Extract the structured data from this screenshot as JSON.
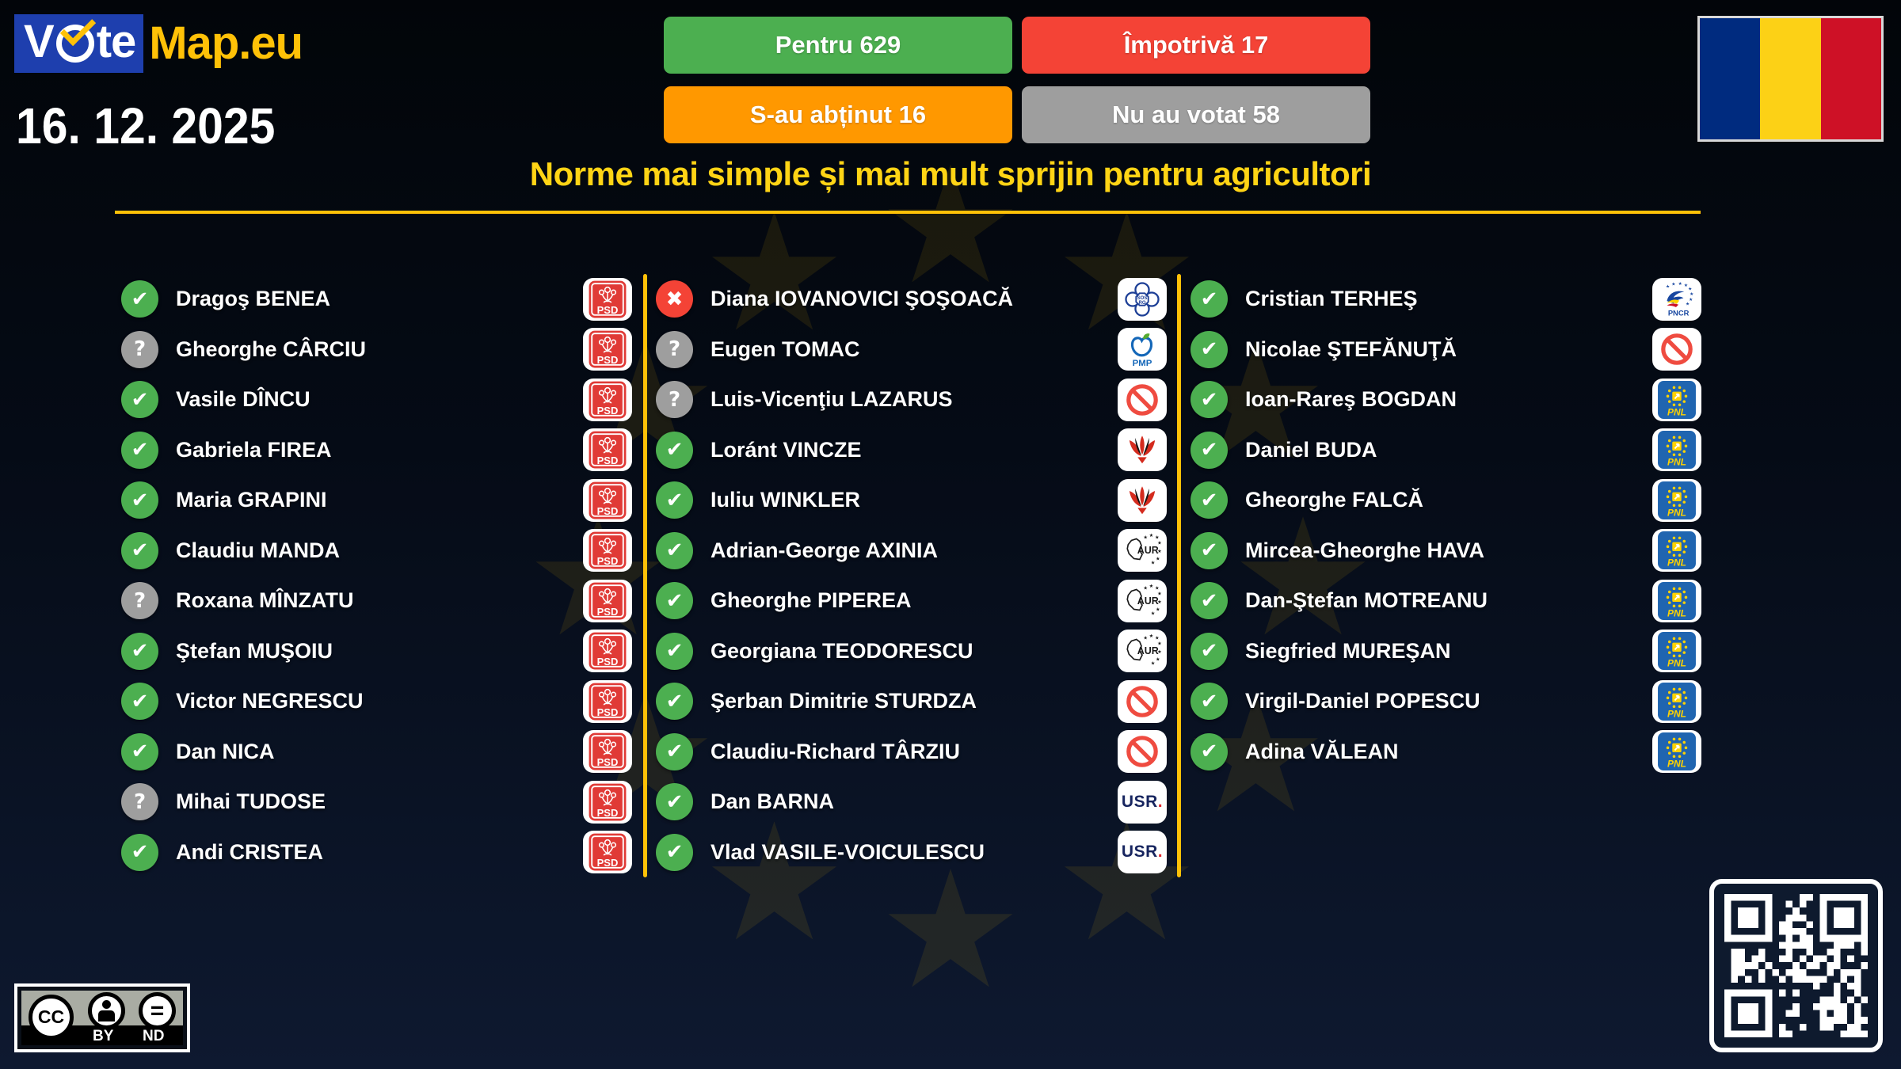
{
  "header": {
    "logo": {
      "part1": "V",
      "part2": "te",
      "part3": "Map.eu"
    },
    "date": "16. 12. 2025",
    "summary": [
      {
        "id": "pentru",
        "label": "Pentru 629",
        "count": 629,
        "color": "#4caf50"
      },
      {
        "id": "impotriva",
        "label": "Împotrivă 17",
        "count": 17,
        "color": "#f44336"
      },
      {
        "id": "abtinut",
        "label": "S-au abținut 16",
        "count": 16,
        "color": "#ff9800"
      },
      {
        "id": "nuavotat",
        "label": "Nu au votat 58",
        "count": 58,
        "color": "#9e9e9e"
      }
    ],
    "flag": {
      "blue": "#002b7f",
      "yellow": "#fcd116",
      "red": "#ce1126"
    }
  },
  "title": "Norme mai simple și mai mult sprijin pentru agricultori",
  "accent": {
    "gold": "#ffc107",
    "title_yellow": "#ffd415",
    "logo_blue": "#1e3fae"
  },
  "vote_icons": {
    "pentru": {
      "glyph": "✔",
      "color": "#4caf50"
    },
    "impotriva": {
      "glyph": "✖",
      "color": "#f44336"
    },
    "necunoscut": {
      "glyph": "?",
      "color": "#9e9e9e"
    }
  },
  "parties": {
    "PSD": {
      "label": "PSD",
      "color": "#e03a36"
    },
    "SOSRO": {
      "label": "SOS RO",
      "color": "#1d3f96"
    },
    "PMP": {
      "label": "PMP",
      "color": "#1467b8",
      "leaf": "#56ab2f"
    },
    "IND": {
      "label": "",
      "color": "#ef4b40"
    },
    "UDMR": {
      "label": "",
      "color": "#d42b1e"
    },
    "AUR": {
      "label": "AUR",
      "color": "#1a1a1a"
    },
    "USR": {
      "label": "USR",
      "color": "#17255f",
      "dot": "#e0262d"
    },
    "PNL": {
      "label": "PNL",
      "color": "#2065b0",
      "accent": "#ffd200"
    },
    "PNCR": {
      "label": "PNCR",
      "color": "#1746a0",
      "accent2": "#ffd200",
      "accent3": "#ce1126"
    }
  },
  "columns": [
    {
      "members": [
        {
          "name": "Dragoş BENEA",
          "vote": "pentru",
          "party": "PSD"
        },
        {
          "name": "Gheorghe CÂRCIU",
          "vote": "necunoscut",
          "party": "PSD"
        },
        {
          "name": "Vasile DÎNCU",
          "vote": "pentru",
          "party": "PSD"
        },
        {
          "name": "Gabriela FIREA",
          "vote": "pentru",
          "party": "PSD"
        },
        {
          "name": "Maria GRAPINI",
          "vote": "pentru",
          "party": "PSD"
        },
        {
          "name": "Claudiu MANDA",
          "vote": "pentru",
          "party": "PSD"
        },
        {
          "name": "Roxana MÎNZATU",
          "vote": "necunoscut",
          "party": "PSD"
        },
        {
          "name": "Ştefan MUŞOIU",
          "vote": "pentru",
          "party": "PSD"
        },
        {
          "name": "Victor NEGRESCU",
          "vote": "pentru",
          "party": "PSD"
        },
        {
          "name": "Dan NICA",
          "vote": "pentru",
          "party": "PSD"
        },
        {
          "name": "Mihai TUDOSE",
          "vote": "necunoscut",
          "party": "PSD"
        },
        {
          "name": "Andi CRISTEA",
          "vote": "pentru",
          "party": "PSD"
        }
      ]
    },
    {
      "members": [
        {
          "name": "Diana IOVANOVICI ŞOŞOACĂ",
          "vote": "impotriva",
          "party": "SOSRO"
        },
        {
          "name": "Eugen TOMAC",
          "vote": "necunoscut",
          "party": "PMP"
        },
        {
          "name": "Luis-Vicenţiu LAZARUS",
          "vote": "necunoscut",
          "party": "IND"
        },
        {
          "name": "Loránt VINCZE",
          "vote": "pentru",
          "party": "UDMR"
        },
        {
          "name": "Iuliu WINKLER",
          "vote": "pentru",
          "party": "UDMR"
        },
        {
          "name": "Adrian-George AXINIA",
          "vote": "pentru",
          "party": "AUR"
        },
        {
          "name": "Gheorghe PIPEREA",
          "vote": "pentru",
          "party": "AUR"
        },
        {
          "name": "Georgiana TEODORESCU",
          "vote": "pentru",
          "party": "AUR"
        },
        {
          "name": "Şerban Dimitrie STURDZA",
          "vote": "pentru",
          "party": "IND"
        },
        {
          "name": "Claudiu-Richard TÂRZIU",
          "vote": "pentru",
          "party": "IND"
        },
        {
          "name": "Dan BARNA",
          "vote": "pentru",
          "party": "USR"
        },
        {
          "name": "Vlad VASILE-VOICULESCU",
          "vote": "pentru",
          "party": "USR"
        }
      ]
    },
    {
      "members": [
        {
          "name": "Cristian TERHEŞ",
          "vote": "pentru",
          "party": "PNCR"
        },
        {
          "name": "Nicolae ŞTEFĂNUŢĂ",
          "vote": "pentru",
          "party": "IND"
        },
        {
          "name": "Ioan-Rareş BOGDAN",
          "vote": "pentru",
          "party": "PNL"
        },
        {
          "name": "Daniel BUDA",
          "vote": "pentru",
          "party": "PNL"
        },
        {
          "name": "Gheorghe FALCĂ",
          "vote": "pentru",
          "party": "PNL"
        },
        {
          "name": "Mircea-Gheorghe HAVA",
          "vote": "pentru",
          "party": "PNL"
        },
        {
          "name": "Dan-Ştefan MOTREANU",
          "vote": "pentru",
          "party": "PNL"
        },
        {
          "name": "Siegfried MUREŞAN",
          "vote": "pentru",
          "party": "PNL"
        },
        {
          "name": "Virgil-Daniel POPESCU",
          "vote": "pentru",
          "party": "PNL"
        },
        {
          "name": "Adina VĂLEAN",
          "vote": "pentru",
          "party": "PNL"
        }
      ]
    }
  ],
  "footer": {
    "license": {
      "cc": "CC",
      "by": "BY",
      "nd": "ND"
    }
  }
}
